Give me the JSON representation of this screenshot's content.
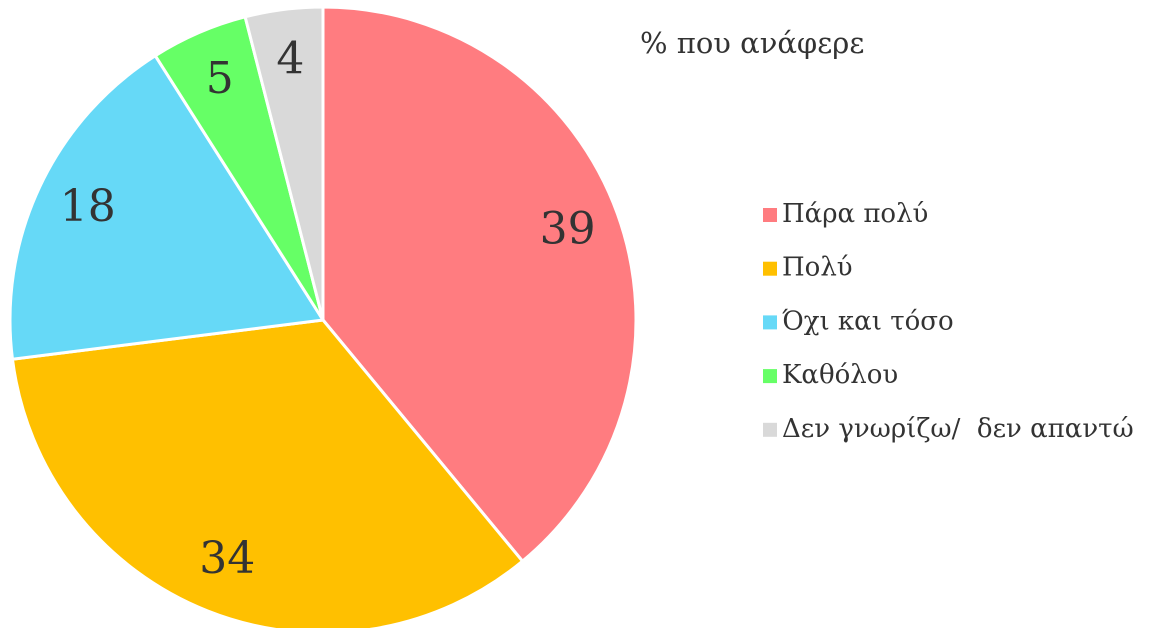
{
  "chart_data": {
    "type": "pie",
    "title": "% που ανάφερε",
    "categories": [
      "Πάρα πολύ",
      "Πολύ",
      "Όχι και τόσο",
      "Καθόλου",
      "Δεν γνωρίζω/  δεν απαντώ"
    ],
    "values": [
      39,
      34,
      18,
      5,
      4
    ],
    "colors": [
      "#ff7c80",
      "#ffc000",
      "#66d9f7",
      "#66ff66",
      "#d9d9d9"
    ],
    "legend": "right"
  }
}
